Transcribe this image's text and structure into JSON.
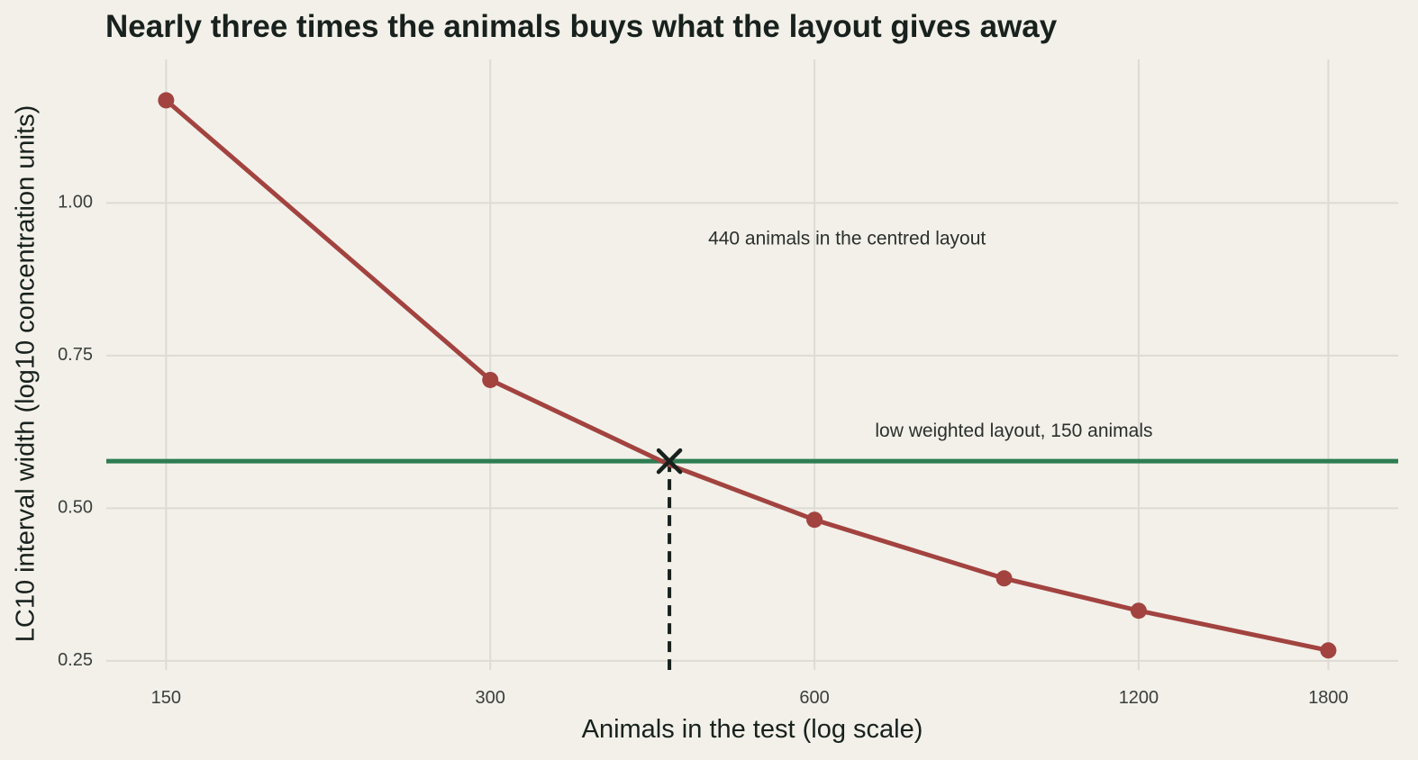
{
  "chart_data": {
    "type": "line",
    "title": "Nearly three times the animals buys what the layout gives away",
    "xlabel": "Animals in the test (log scale)",
    "ylabel": "LC10 interval width (log10 concentration units)",
    "x_scale": "log",
    "x_ticks": [
      150,
      300,
      600,
      1200,
      1800
    ],
    "y_ticks": [
      0.25,
      0.5,
      0.75,
      1.0
    ],
    "y_tick_labels": [
      "0.25",
      "0.50",
      "0.75",
      "1.00"
    ],
    "xlim": [
      132,
      2090
    ],
    "ylim": [
      0.235,
      1.235
    ],
    "grid": true,
    "series": [
      {
        "x": [
          150,
          300,
          440,
          600,
          900,
          1200,
          1800
        ],
        "y": [
          1.168,
          0.71,
          0.571,
          0.481,
          0.385,
          0.332,
          0.267
        ],
        "color": "#a24340",
        "markers_at": [
          150,
          300,
          600,
          900,
          1200,
          1800
        ]
      }
    ],
    "reference_line": {
      "y": 0.577,
      "color": "#2e7d52",
      "label": "low weighted layout, 150 animals",
      "label_at": {
        "x": 683,
        "y": 0.625
      }
    },
    "crossing": {
      "x": 440,
      "y": 0.577,
      "label": "440 animals in the centred layout",
      "label_at": {
        "x": 478,
        "y": 0.94
      }
    },
    "colors": {
      "background": "#f2f0e9",
      "grid": "#dddbd4",
      "text": "#18211d",
      "tick_text": "#3a3f3c",
      "marker": "#18211d"
    }
  }
}
